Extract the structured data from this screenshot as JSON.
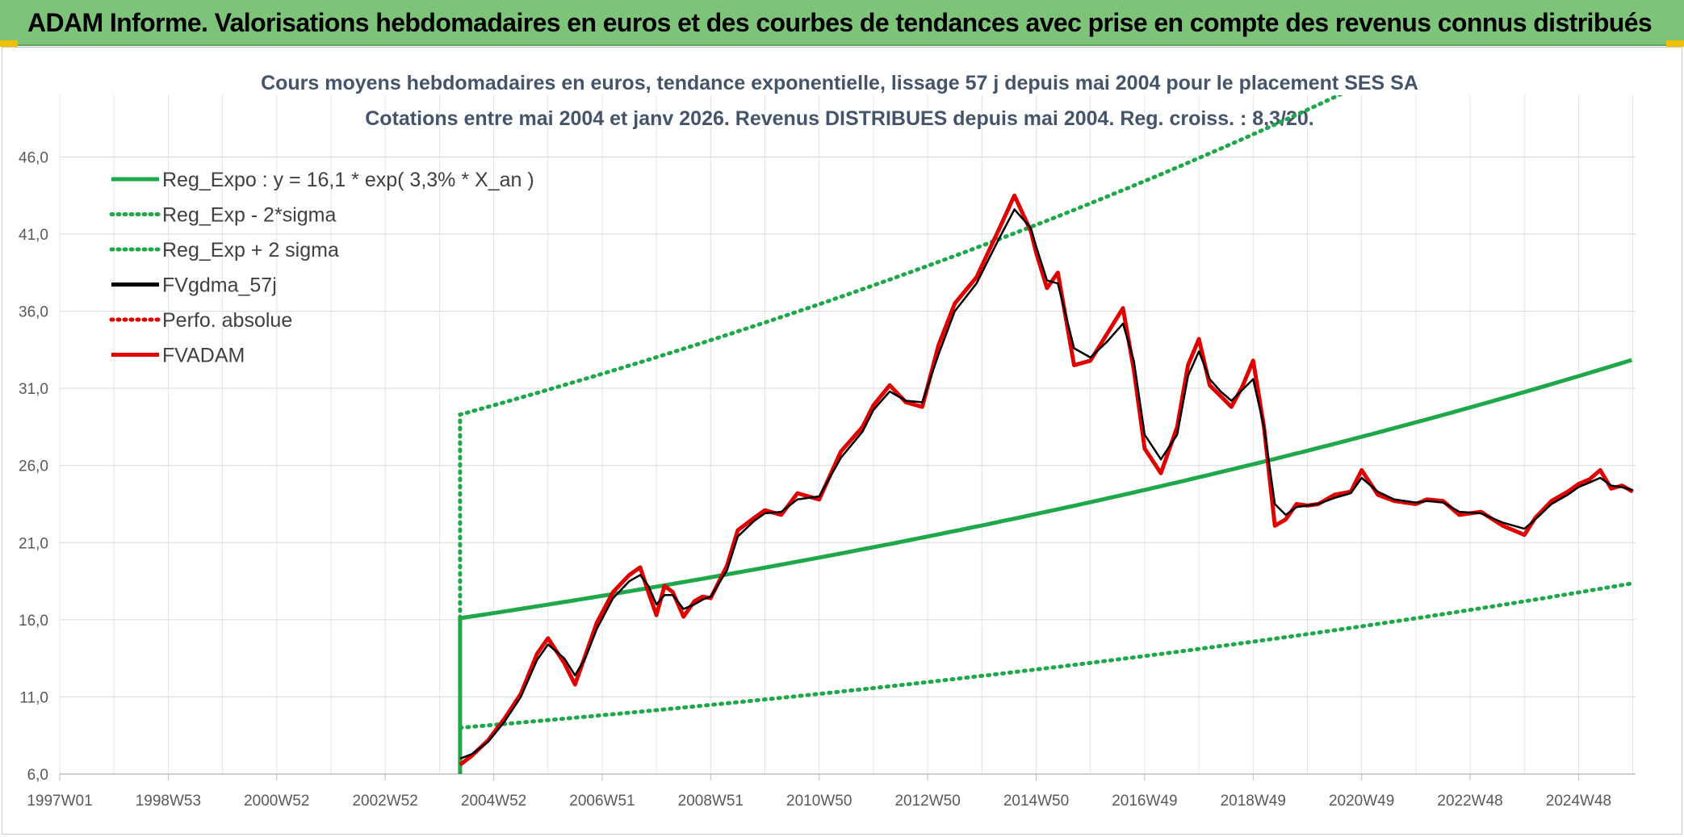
{
  "banner": {
    "title": "ADAM Informe. Valorisations hebdomadaires en euros et des courbes de tendances avec prise en compte des revenus connus distribués",
    "accent_color": "#7dc47a"
  },
  "chart_data": {
    "type": "line",
    "title_line1": "Cours moyens hebdomadaires en euros, tendance exponentielle, lissage 57 j depuis mai 2004 pour le placement SES SA",
    "title_line2": "Cotations entre mai 2004 et janv 2026. Revenus DISTRIBUES depuis mai 2004. Reg. croiss. : 8,3/20.",
    "y_ticks": [
      "6,0",
      "11,0",
      "16,0",
      "21,0",
      "26,0",
      "31,0",
      "36,0",
      "41,0",
      "46,0"
    ],
    "ylim": [
      6,
      50
    ],
    "x_ticks": [
      "1997W01",
      "1998W53",
      "2000W52",
      "2002W52",
      "2004W52",
      "2006W51",
      "2008W51",
      "2010W50",
      "2012W50",
      "2014W50",
      "2016W49",
      "2018W49",
      "2020W49",
      "2022W48",
      "2024W48"
    ],
    "x_ticks_years": [
      1997.0,
      1999.0,
      2001.0,
      2003.0,
      2005.0,
      2007.0,
      2009.0,
      2011.0,
      2013.0,
      2015.0,
      2017.0,
      2019.0,
      2021.0,
      2023.0,
      2025.0
    ],
    "xlim": [
      1997.0,
      2026.05
    ],
    "grid": true,
    "legend_position": "top-left",
    "legend": [
      {
        "label": "Reg_Expo : y = 16,1 * exp( 3,3% *  X_an )",
        "color": "#1ea84a",
        "style": "solid"
      },
      {
        "label": "Reg_Exp - 2*sigma",
        "color": "#1ea84a",
        "style": "dotted"
      },
      {
        "label": "Reg_Exp + 2 sigma",
        "color": "#1ea84a",
        "style": "dotted"
      },
      {
        "label": "FVgdma_57j",
        "color": "#000000",
        "style": "solid"
      },
      {
        "label": "Perfo. absolue",
        "color": "#e00000",
        "style": "dotted"
      },
      {
        "label": "FVADAM",
        "color": "#e00000",
        "style": "solid"
      }
    ],
    "regression": {
      "a": 16.1,
      "rate": 0.033,
      "start_year": 2004.38,
      "end_year": 2026.05,
      "lower_start": 9.0,
      "upper_start": 29.3
    },
    "series": [
      {
        "name": "FVADAM",
        "color": "#e00000",
        "x": [
          2004.38,
          2004.6,
          2004.9,
          2005.2,
          2005.5,
          2005.8,
          2006.0,
          2006.3,
          2006.5,
          2006.7,
          2006.9,
          2007.2,
          2007.5,
          2007.7,
          2007.85,
          2008.0,
          2008.15,
          2008.3,
          2008.5,
          2008.7,
          2008.85,
          2009.0,
          2009.3,
          2009.5,
          2009.8,
          2010.0,
          2010.3,
          2010.6,
          2011.0,
          2011.4,
          2011.8,
          2012.0,
          2012.3,
          2012.6,
          2012.9,
          2013.2,
          2013.5,
          2013.9,
          2014.3,
          2014.6,
          2014.9,
          2015.0,
          2015.2,
          2015.4,
          2015.7,
          2016.0,
          2016.3,
          2016.6,
          2016.8,
          2017.0,
          2017.3,
          2017.6,
          2017.8,
          2018.0,
          2018.2,
          2018.4,
          2018.6,
          2018.8,
          2019.0,
          2019.2,
          2019.4,
          2019.6,
          2019.8,
          2020.0,
          2020.2,
          2020.5,
          2020.8,
          2021.0,
          2021.3,
          2021.6,
          2022.0,
          2022.2,
          2022.5,
          2022.8,
          2023.2,
          2023.6,
          2024.0,
          2024.2,
          2024.5,
          2024.8,
          2025.0,
          2025.2,
          2025.4,
          2025.6,
          2025.8,
          2026.0
        ],
        "values": [
          6.6,
          7.2,
          8.2,
          9.6,
          11.2,
          13.8,
          14.8,
          13.2,
          11.8,
          13.8,
          15.8,
          17.8,
          18.9,
          19.4,
          17.8,
          16.3,
          18.2,
          17.8,
          16.2,
          17.2,
          17.5,
          17.4,
          19.5,
          21.8,
          22.6,
          23.1,
          22.8,
          24.2,
          23.8,
          26.9,
          28.5,
          29.9,
          31.2,
          30.1,
          29.8,
          33.8,
          36.5,
          38.2,
          41.2,
          43.5,
          41.2,
          39.8,
          37.5,
          38.5,
          32.5,
          32.8,
          34.5,
          36.2,
          32.2,
          27.1,
          25.5,
          28.5,
          32.5,
          34.2,
          31.2,
          30.5,
          29.8,
          31.1,
          32.8,
          28.5,
          22.1,
          22.5,
          23.5,
          23.4,
          23.5,
          24.1,
          24.3,
          25.7,
          24.1,
          23.7,
          23.5,
          23.8,
          23.7,
          22.8,
          23.0,
          22.1,
          21.5,
          22.6,
          23.7,
          24.3,
          24.8,
          25.1,
          25.7,
          24.5,
          24.7,
          24.3
        ]
      },
      {
        "name": "FVgdma_57j",
        "color": "#000000",
        "x": [
          2004.38,
          2004.6,
          2004.9,
          2005.2,
          2005.5,
          2005.8,
          2006.0,
          2006.3,
          2006.5,
          2006.7,
          2006.9,
          2007.2,
          2007.5,
          2007.7,
          2007.85,
          2008.0,
          2008.15,
          2008.3,
          2008.5,
          2008.7,
          2008.85,
          2009.0,
          2009.3,
          2009.5,
          2009.8,
          2010.0,
          2010.3,
          2010.6,
          2011.0,
          2011.4,
          2011.8,
          2012.0,
          2012.3,
          2012.6,
          2012.9,
          2013.2,
          2013.5,
          2013.9,
          2014.3,
          2014.6,
          2014.9,
          2015.0,
          2015.2,
          2015.4,
          2015.7,
          2016.0,
          2016.3,
          2016.6,
          2016.8,
          2017.0,
          2017.3,
          2017.6,
          2017.8,
          2018.0,
          2018.2,
          2018.4,
          2018.6,
          2018.8,
          2019.0,
          2019.2,
          2019.4,
          2019.6,
          2019.8,
          2020.0,
          2020.2,
          2020.5,
          2020.8,
          2021.0,
          2021.3,
          2021.6,
          2022.0,
          2022.2,
          2022.5,
          2022.8,
          2023.2,
          2023.6,
          2024.0,
          2024.2,
          2024.5,
          2024.8,
          2025.0,
          2025.2,
          2025.4,
          2025.6,
          2025.8,
          2026.0
        ],
        "values": [
          7.0,
          7.3,
          8.1,
          9.4,
          11.0,
          13.4,
          14.4,
          13.5,
          12.4,
          13.6,
          15.4,
          17.4,
          18.5,
          18.9,
          18.2,
          17.0,
          17.6,
          17.6,
          16.7,
          17.0,
          17.3,
          17.5,
          19.2,
          21.4,
          22.4,
          22.9,
          23.0,
          23.8,
          24.0,
          26.5,
          28.2,
          29.6,
          30.8,
          30.2,
          30.1,
          33.2,
          36.0,
          37.8,
          40.6,
          42.6,
          41.4,
          40.2,
          38.0,
          37.8,
          33.6,
          33.0,
          34.0,
          35.2,
          32.8,
          28.0,
          26.4,
          28.0,
          31.8,
          33.4,
          31.6,
          30.8,
          30.2,
          30.9,
          31.6,
          28.5,
          23.5,
          22.8,
          23.3,
          23.4,
          23.5,
          23.9,
          24.2,
          25.2,
          24.3,
          23.8,
          23.6,
          23.7,
          23.6,
          23.0,
          22.9,
          22.3,
          21.9,
          22.5,
          23.5,
          24.1,
          24.6,
          24.9,
          25.2,
          24.7,
          24.6,
          24.4
        ]
      }
    ]
  }
}
